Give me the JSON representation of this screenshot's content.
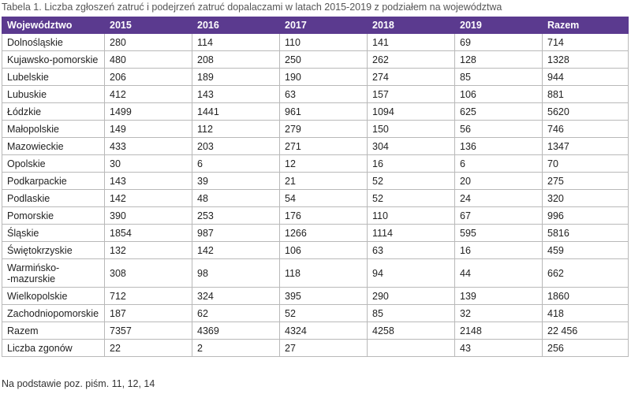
{
  "caption": "Tabela 1. Liczba zgłoszeń zatruć i podejrzeń zatruć dopalaczami w latach 2015-2019 z podziałem na województwa",
  "headers": [
    "Województwo",
    "2015",
    "2016",
    "2017",
    "2018",
    "2019",
    "Razem"
  ],
  "rows": [
    [
      "Dolnośląskie",
      "280",
      "114",
      "110",
      "141",
      "69",
      "714"
    ],
    [
      "Kujawsko-pomorskie",
      "480",
      "208",
      "250",
      "262",
      "128",
      "1328"
    ],
    [
      "Lubelskie",
      "206",
      "189",
      "190",
      "274",
      "85",
      "944"
    ],
    [
      "Lubuskie",
      "412",
      "143",
      "63",
      "157",
      "106",
      "881"
    ],
    [
      "Łódzkie",
      "1499",
      "1441",
      "961",
      "1094",
      "625",
      "5620"
    ],
    [
      "Małopolskie",
      "149",
      "112",
      "279",
      "150",
      "56",
      "746"
    ],
    [
      "Mazowieckie",
      "433",
      "203",
      "271",
      "304",
      "136",
      "1347"
    ],
    [
      "Opolskie",
      "30",
      "6",
      "12",
      "16",
      "6",
      "70"
    ],
    [
      "Podkarpackie",
      "143",
      "39",
      "21",
      "52",
      "20",
      "275"
    ],
    [
      "Podlaskie",
      "142",
      "48",
      "54",
      "52",
      "24",
      "320"
    ],
    [
      "Pomorskie",
      "390",
      "253",
      "176",
      "110",
      "67",
      "996"
    ],
    [
      "Śląskie",
      "1854",
      "987",
      "1266",
      "1114",
      "595",
      "5816"
    ],
    [
      "Świętokrzyskie",
      "132",
      "142",
      "106",
      "63",
      "16",
      "459"
    ],
    [
      "Warmińsko-\n-mazurskie",
      "308",
      "98",
      "118",
      "94",
      "44",
      "662"
    ],
    [
      "Wielkopolskie",
      "712",
      "324",
      "395",
      "290",
      "139",
      "1860"
    ],
    [
      "Zachodniopomorskie",
      "187",
      "62",
      "52",
      "85",
      "32",
      "418"
    ],
    [
      "Razem",
      "7357",
      "4369",
      "4324",
      "4258",
      "2148",
      "22 456"
    ],
    [
      "Liczba zgonów",
      "22",
      "2",
      "27",
      "43",
      "256"
    ]
  ],
  "footnote": "Na podstawie poz. piśm. 11, 12, 14",
  "colors": {
    "header_bg": "#5b3a8f",
    "border": "#b9b9b9"
  }
}
